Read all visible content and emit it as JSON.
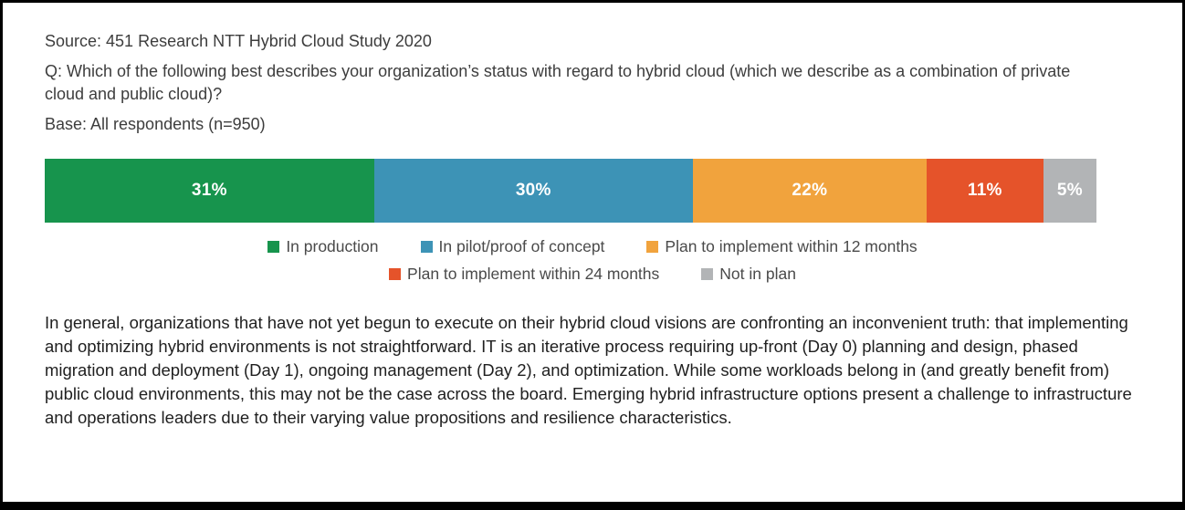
{
  "page": {
    "source_line": "Source: 451 Research NTT Hybrid Cloud Study 2020",
    "question_line": "Q: Which of the following best describes your organization’s status with regard to hybrid cloud (which we describe as a combination of private cloud and public cloud)?",
    "base_line": "Base: All respondents (n=950)"
  },
  "chart_data": {
    "type": "bar",
    "subtype": "horizontal-stacked",
    "unit": "percent",
    "categories": [
      "In production",
      "In pilot/proof of concept",
      "Plan to implement within 12 months",
      "Plan to implement within 24 months",
      "Not in plan"
    ],
    "values": [
      31,
      30,
      22,
      11,
      5
    ],
    "value_labels": [
      "31%",
      "30%",
      "22%",
      "11%",
      "5%"
    ],
    "colors": [
      "#17944d",
      "#3d93b6",
      "#f1a33d",
      "#e5532a",
      "#b2b4b6"
    ],
    "legend_position": "bottom",
    "axis": "none",
    "grid": false
  },
  "commentary": "In general, organizations that have not yet begun to execute on their hybrid cloud visions are confronting an inconvenient truth: that implementing and optimizing hybrid environments is not straightforward. IT is an iterative process requiring up-front (Day 0) planning and design, phased migration and deployment (Day 1), ongoing management (Day 2), and optimization. While some workloads belong in (and greatly benefit from) public cloud environments, this may not be the case across the board. Emerging hybrid infrastructure options present a challenge to infrastructure and operations leaders due to their varying value propositions and resilience characteristics."
}
